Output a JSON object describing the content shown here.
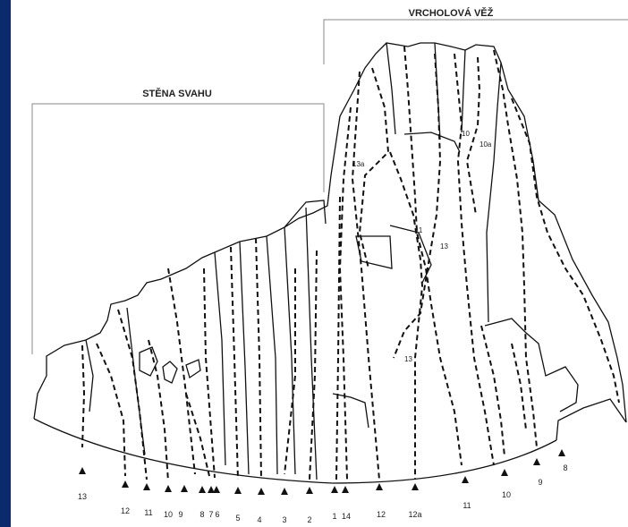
{
  "sections": {
    "left": "STĚNA SVAHU",
    "right": "VRCHOLOVÁ VĚŽ"
  },
  "colors": {
    "frame": "#0b2a6e",
    "paper": "#ffffff",
    "ink": "#111111"
  },
  "bottom_labels": [
    "13",
    "12",
    "11",
    "10",
    "9",
    "8",
    "7",
    "6",
    "5",
    "4",
    "3",
    "2",
    "1",
    "14",
    "12",
    "12a",
    "11",
    "10",
    "9",
    "8"
  ],
  "face_labels": [
    "10",
    "10a",
    "13a",
    "11",
    "13",
    "13"
  ]
}
